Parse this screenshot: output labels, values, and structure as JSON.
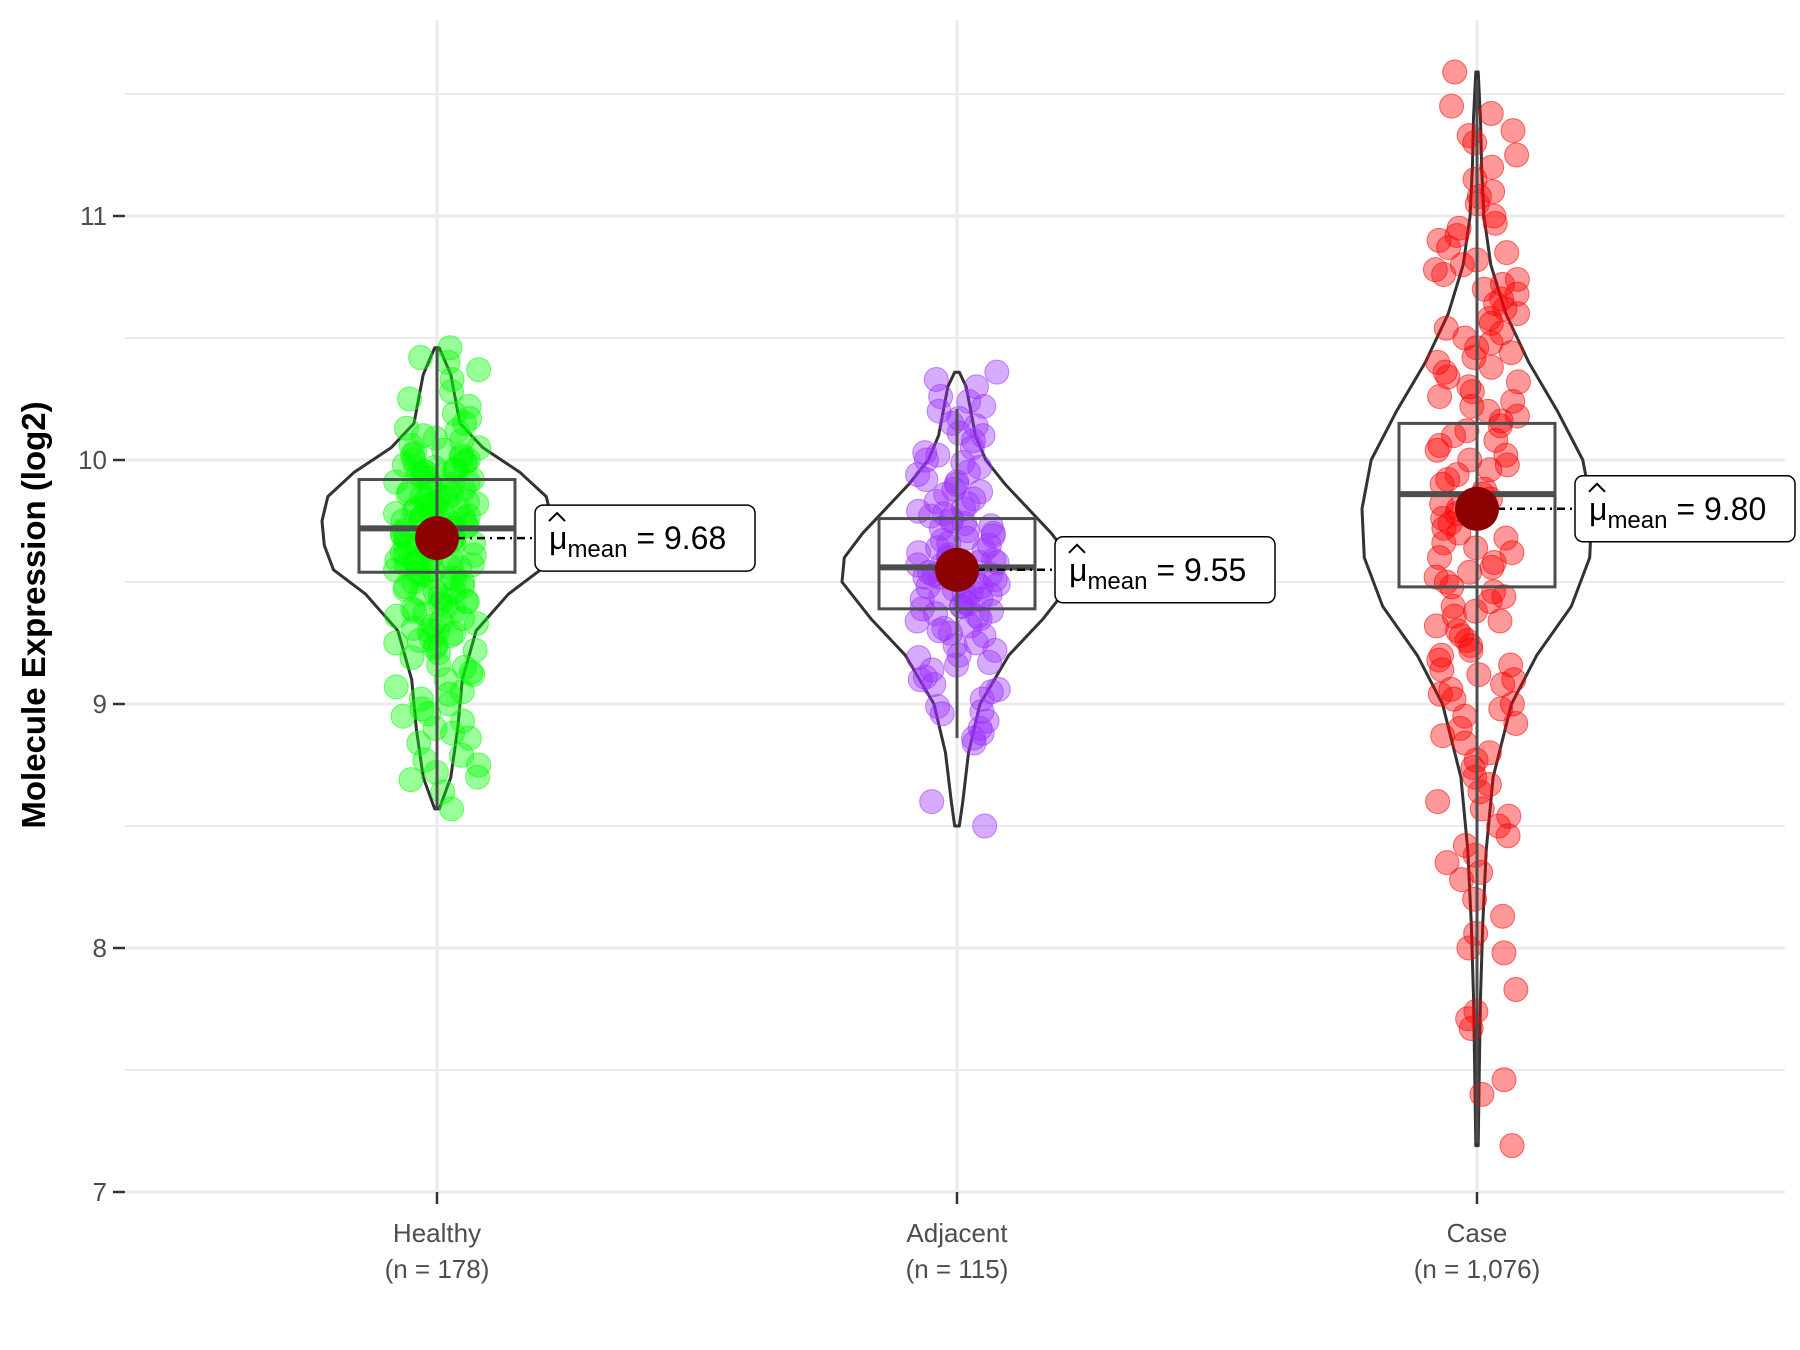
{
  "chart_data": {
    "type": "violin",
    "title": "",
    "xlabel": "",
    "ylabel": "Molecule Expression (log2)",
    "ylim": [
      7,
      11.7
    ],
    "yticks": [
      7,
      8,
      9,
      10,
      11
    ],
    "grid": true,
    "mean_symbol": "μ",
    "mean_subscript": "mean",
    "groups": [
      {
        "name": "Healthy",
        "n_label": "(n = 178)",
        "color": "#00ff00",
        "mean": 9.68,
        "mean_label": "9.68",
        "median": 9.72,
        "q1": 9.54,
        "q3": 9.92,
        "whisker_low": 8.57,
        "whisker_high": 10.46,
        "min": 8.57,
        "max": 10.46,
        "points": [
          10.46,
          10.42,
          10.4,
          10.37,
          10.33,
          10.28,
          10.25,
          10.22,
          10.19,
          10.15,
          10.12,
          10.1,
          10.08,
          10.06,
          10.04,
          10.03,
          10.02,
          10.01,
          10.0,
          9.99,
          9.98,
          9.97,
          9.96,
          9.95,
          9.94,
          9.93,
          9.92,
          9.91,
          9.9,
          9.89,
          9.88,
          9.87,
          9.86,
          9.85,
          9.84,
          9.83,
          9.82,
          9.81,
          9.8,
          9.79,
          9.78,
          9.77,
          9.76,
          9.75,
          9.74,
          9.73,
          9.72,
          9.71,
          9.7,
          9.69,
          9.68,
          9.67,
          9.66,
          9.65,
          9.64,
          9.63,
          9.62,
          9.61,
          9.6,
          9.59,
          9.58,
          9.57,
          9.56,
          9.55,
          9.54,
          9.53,
          9.52,
          9.5,
          9.48,
          9.46,
          9.44,
          9.42,
          9.4,
          9.38,
          9.36,
          9.34,
          9.32,
          9.3,
          9.28,
          9.26,
          9.24,
          9.22,
          9.19,
          9.16,
          9.13,
          9.1,
          9.07,
          9.04,
          9.0,
          8.96,
          8.93,
          8.88,
          8.84,
          8.79,
          8.75,
          8.72,
          8.69,
          8.64,
          8.57,
          9.83,
          9.79,
          9.74,
          9.7,
          9.66,
          9.62,
          9.58,
          9.55,
          9.5,
          9.45,
          9.42,
          9.38,
          9.35,
          9.3,
          9.27,
          9.25,
          9.93,
          9.96,
          9.99,
          10.02,
          10.05,
          9.71,
          9.73,
          9.76,
          9.78,
          9.8,
          9.85,
          9.88,
          9.9,
          9.67,
          9.64,
          9.6,
          9.57,
          9.52,
          9.48,
          9.43,
          9.39,
          9.86,
          9.82,
          9.77,
          9.72,
          9.69,
          9.63,
          9.58,
          9.53,
          9.47,
          9.41,
          9.33,
          9.29,
          9.21,
          9.15,
          9.05,
          8.98,
          8.9,
          10.09,
          10.13,
          10.17,
          9.95,
          9.91,
          9.84,
          9.81,
          9.75,
          9.68,
          9.65,
          9.61,
          9.56,
          9.51,
          9.46,
          9.37,
          9.31,
          9.23,
          9.12,
          9.02,
          8.95,
          8.86,
          8.77,
          8.7,
          10.0,
          9.97,
          9.94
        ],
        "density": [
          [
            8.57,
            0.02
          ],
          [
            8.7,
            0.12
          ],
          [
            8.9,
            0.18
          ],
          [
            9.1,
            0.22
          ],
          [
            9.3,
            0.34
          ],
          [
            9.45,
            0.62
          ],
          [
            9.55,
            0.9
          ],
          [
            9.65,
            0.98
          ],
          [
            9.75,
            1.0
          ],
          [
            9.85,
            0.95
          ],
          [
            9.95,
            0.72
          ],
          [
            10.05,
            0.4
          ],
          [
            10.15,
            0.2
          ],
          [
            10.25,
            0.16
          ],
          [
            10.35,
            0.12
          ],
          [
            10.46,
            0.02
          ]
        ]
      },
      {
        "name": "Adjacent",
        "n_label": "(n = 115)",
        "color": "#9b30ff",
        "mean": 9.55,
        "mean_label": "9.55",
        "median": 9.56,
        "q1": 9.39,
        "q3": 9.76,
        "whisker_low": 8.86,
        "whisker_high": 10.21,
        "min": 8.5,
        "max": 10.36,
        "points": [
          10.36,
          10.33,
          10.3,
          10.26,
          10.22,
          10.2,
          10.17,
          10.14,
          10.11,
          10.08,
          10.05,
          10.02,
          10.0,
          9.97,
          9.94,
          9.92,
          9.9,
          9.88,
          9.86,
          9.84,
          9.82,
          9.8,
          9.78,
          9.76,
          9.75,
          9.74,
          9.72,
          9.7,
          9.69,
          9.68,
          9.66,
          9.65,
          9.64,
          9.62,
          9.61,
          9.6,
          9.59,
          9.58,
          9.57,
          9.56,
          9.55,
          9.54,
          9.53,
          9.52,
          9.51,
          9.5,
          9.49,
          9.48,
          9.47,
          9.46,
          9.45,
          9.44,
          9.43,
          9.42,
          9.41,
          9.4,
          9.39,
          9.38,
          9.36,
          9.34,
          9.32,
          9.3,
          9.28,
          9.25,
          9.22,
          9.2,
          9.17,
          9.14,
          9.11,
          9.08,
          9.05,
          9.02,
          8.99,
          8.96,
          8.93,
          8.9,
          8.86,
          8.84,
          8.6,
          8.5,
          9.63,
          9.58,
          9.53,
          9.48,
          9.43,
          9.37,
          9.31,
          9.24,
          9.16,
          9.1,
          9.67,
          9.71,
          9.73,
          9.77,
          9.79,
          9.83,
          9.87,
          9.91,
          9.95,
          9.99,
          10.03,
          10.1,
          10.15,
          10.24,
          9.55,
          9.57,
          9.52,
          9.45,
          9.4,
          9.35,
          9.29,
          9.19,
          9.06,
          8.97,
          8.88
        ],
        "density": [
          [
            8.5,
            0.02
          ],
          [
            8.6,
            0.05
          ],
          [
            8.8,
            0.1
          ],
          [
            9.0,
            0.2
          ],
          [
            9.2,
            0.45
          ],
          [
            9.35,
            0.75
          ],
          [
            9.5,
            1.0
          ],
          [
            9.6,
            0.98
          ],
          [
            9.7,
            0.82
          ],
          [
            9.8,
            0.62
          ],
          [
            9.9,
            0.42
          ],
          [
            10.0,
            0.25
          ],
          [
            10.1,
            0.16
          ],
          [
            10.2,
            0.12
          ],
          [
            10.3,
            0.08
          ],
          [
            10.36,
            0.02
          ]
        ]
      },
      {
        "name": "Case",
        "n_label": "(n = 1,076)",
        "color": "#ff0000",
        "mean": 9.8,
        "mean_label": "9.80",
        "median": 9.86,
        "q1": 9.48,
        "q3": 10.15,
        "whisker_low": 7.2,
        "whisker_high": 11.55,
        "min": 7.19,
        "max": 11.59,
        "points": [
          11.59,
          11.45,
          11.42,
          11.35,
          11.33,
          11.3,
          11.25,
          11.2,
          11.15,
          11.1,
          11.08,
          11.05,
          11.0,
          10.97,
          10.95,
          10.92,
          10.9,
          10.87,
          10.85,
          10.82,
          10.8,
          10.78,
          10.76,
          10.74,
          10.72,
          10.7,
          10.68,
          10.66,
          10.64,
          10.62,
          10.6,
          10.58,
          10.56,
          10.54,
          10.52,
          10.5,
          10.48,
          10.46,
          10.44,
          10.42,
          10.4,
          10.38,
          10.36,
          10.34,
          10.32,
          10.3,
          10.28,
          10.26,
          10.24,
          10.22,
          10.2,
          10.18,
          10.16,
          10.14,
          10.12,
          10.1,
          10.08,
          10.06,
          10.04,
          10.02,
          10.0,
          9.98,
          9.96,
          9.94,
          9.92,
          9.9,
          9.88,
          9.86,
          9.84,
          9.82,
          9.8,
          9.78,
          9.76,
          9.74,
          9.72,
          9.7,
          9.68,
          9.66,
          9.64,
          9.62,
          9.6,
          9.58,
          9.56,
          9.54,
          9.52,
          9.5,
          9.48,
          9.46,
          9.44,
          9.42,
          9.4,
          9.38,
          9.36,
          9.34,
          9.32,
          9.3,
          9.28,
          9.26,
          9.24,
          9.22,
          9.2,
          9.18,
          9.16,
          9.14,
          9.12,
          9.1,
          9.08,
          9.06,
          9.04,
          9.02,
          9.0,
          8.98,
          8.95,
          8.92,
          8.9,
          8.87,
          8.84,
          8.8,
          8.77,
          8.74,
          8.7,
          8.67,
          8.64,
          8.6,
          8.57,
          8.54,
          8.5,
          8.46,
          8.42,
          8.38,
          8.35,
          8.31,
          8.28,
          8.2,
          8.13,
          8.06,
          8.0,
          7.98,
          7.83,
          7.74,
          7.71,
          7.67,
          7.46,
          7.4,
          7.19
        ],
        "density": [
          [
            7.19,
            0.01
          ],
          [
            7.5,
            0.02
          ],
          [
            7.8,
            0.03
          ],
          [
            8.1,
            0.05
          ],
          [
            8.4,
            0.08
          ],
          [
            8.7,
            0.14
          ],
          [
            9.0,
            0.3
          ],
          [
            9.2,
            0.52
          ],
          [
            9.4,
            0.82
          ],
          [
            9.6,
            0.98
          ],
          [
            9.8,
            1.0
          ],
          [
            10.0,
            0.92
          ],
          [
            10.2,
            0.7
          ],
          [
            10.4,
            0.45
          ],
          [
            10.6,
            0.25
          ],
          [
            10.8,
            0.12
          ],
          [
            11.0,
            0.06
          ],
          [
            11.2,
            0.04
          ],
          [
            11.4,
            0.03
          ],
          [
            11.59,
            0.01
          ]
        ]
      }
    ]
  }
}
